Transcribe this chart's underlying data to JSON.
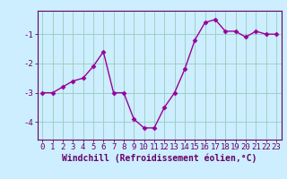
{
  "x": [
    0,
    1,
    2,
    3,
    4,
    5,
    6,
    7,
    8,
    9,
    10,
    11,
    12,
    13,
    14,
    15,
    16,
    17,
    18,
    19,
    20,
    21,
    22,
    23
  ],
  "y": [
    -3.0,
    -3.0,
    -2.8,
    -2.6,
    -2.5,
    -2.1,
    -1.6,
    -3.0,
    -3.0,
    -3.9,
    -4.2,
    -4.2,
    -3.5,
    -3.0,
    -2.2,
    -1.2,
    -0.6,
    -0.5,
    -0.9,
    -0.9,
    -1.1,
    -0.9,
    -1.0,
    -1.0
  ],
  "line_color": "#990099",
  "marker": "D",
  "marker_size": 2.5,
  "background_color": "#cceeff",
  "grid_color": "#99ccbb",
  "axes_color": "#660066",
  "xlabel": "Windchill (Refroidissement éolien,°C)",
  "xlabel_fontsize": 7,
  "tick_fontsize": 6.5,
  "ylim": [
    -4.6,
    -0.2
  ],
  "xlim": [
    -0.5,
    23.5
  ],
  "yticks": [
    -4,
    -3,
    -2,
    -1
  ],
  "ytick_labels": [
    "-4",
    "-3",
    "-2",
    "-1"
  ],
  "xticks": [
    0,
    1,
    2,
    3,
    4,
    5,
    6,
    7,
    8,
    9,
    10,
    11,
    12,
    13,
    14,
    15,
    16,
    17,
    18,
    19,
    20,
    21,
    22,
    23
  ]
}
